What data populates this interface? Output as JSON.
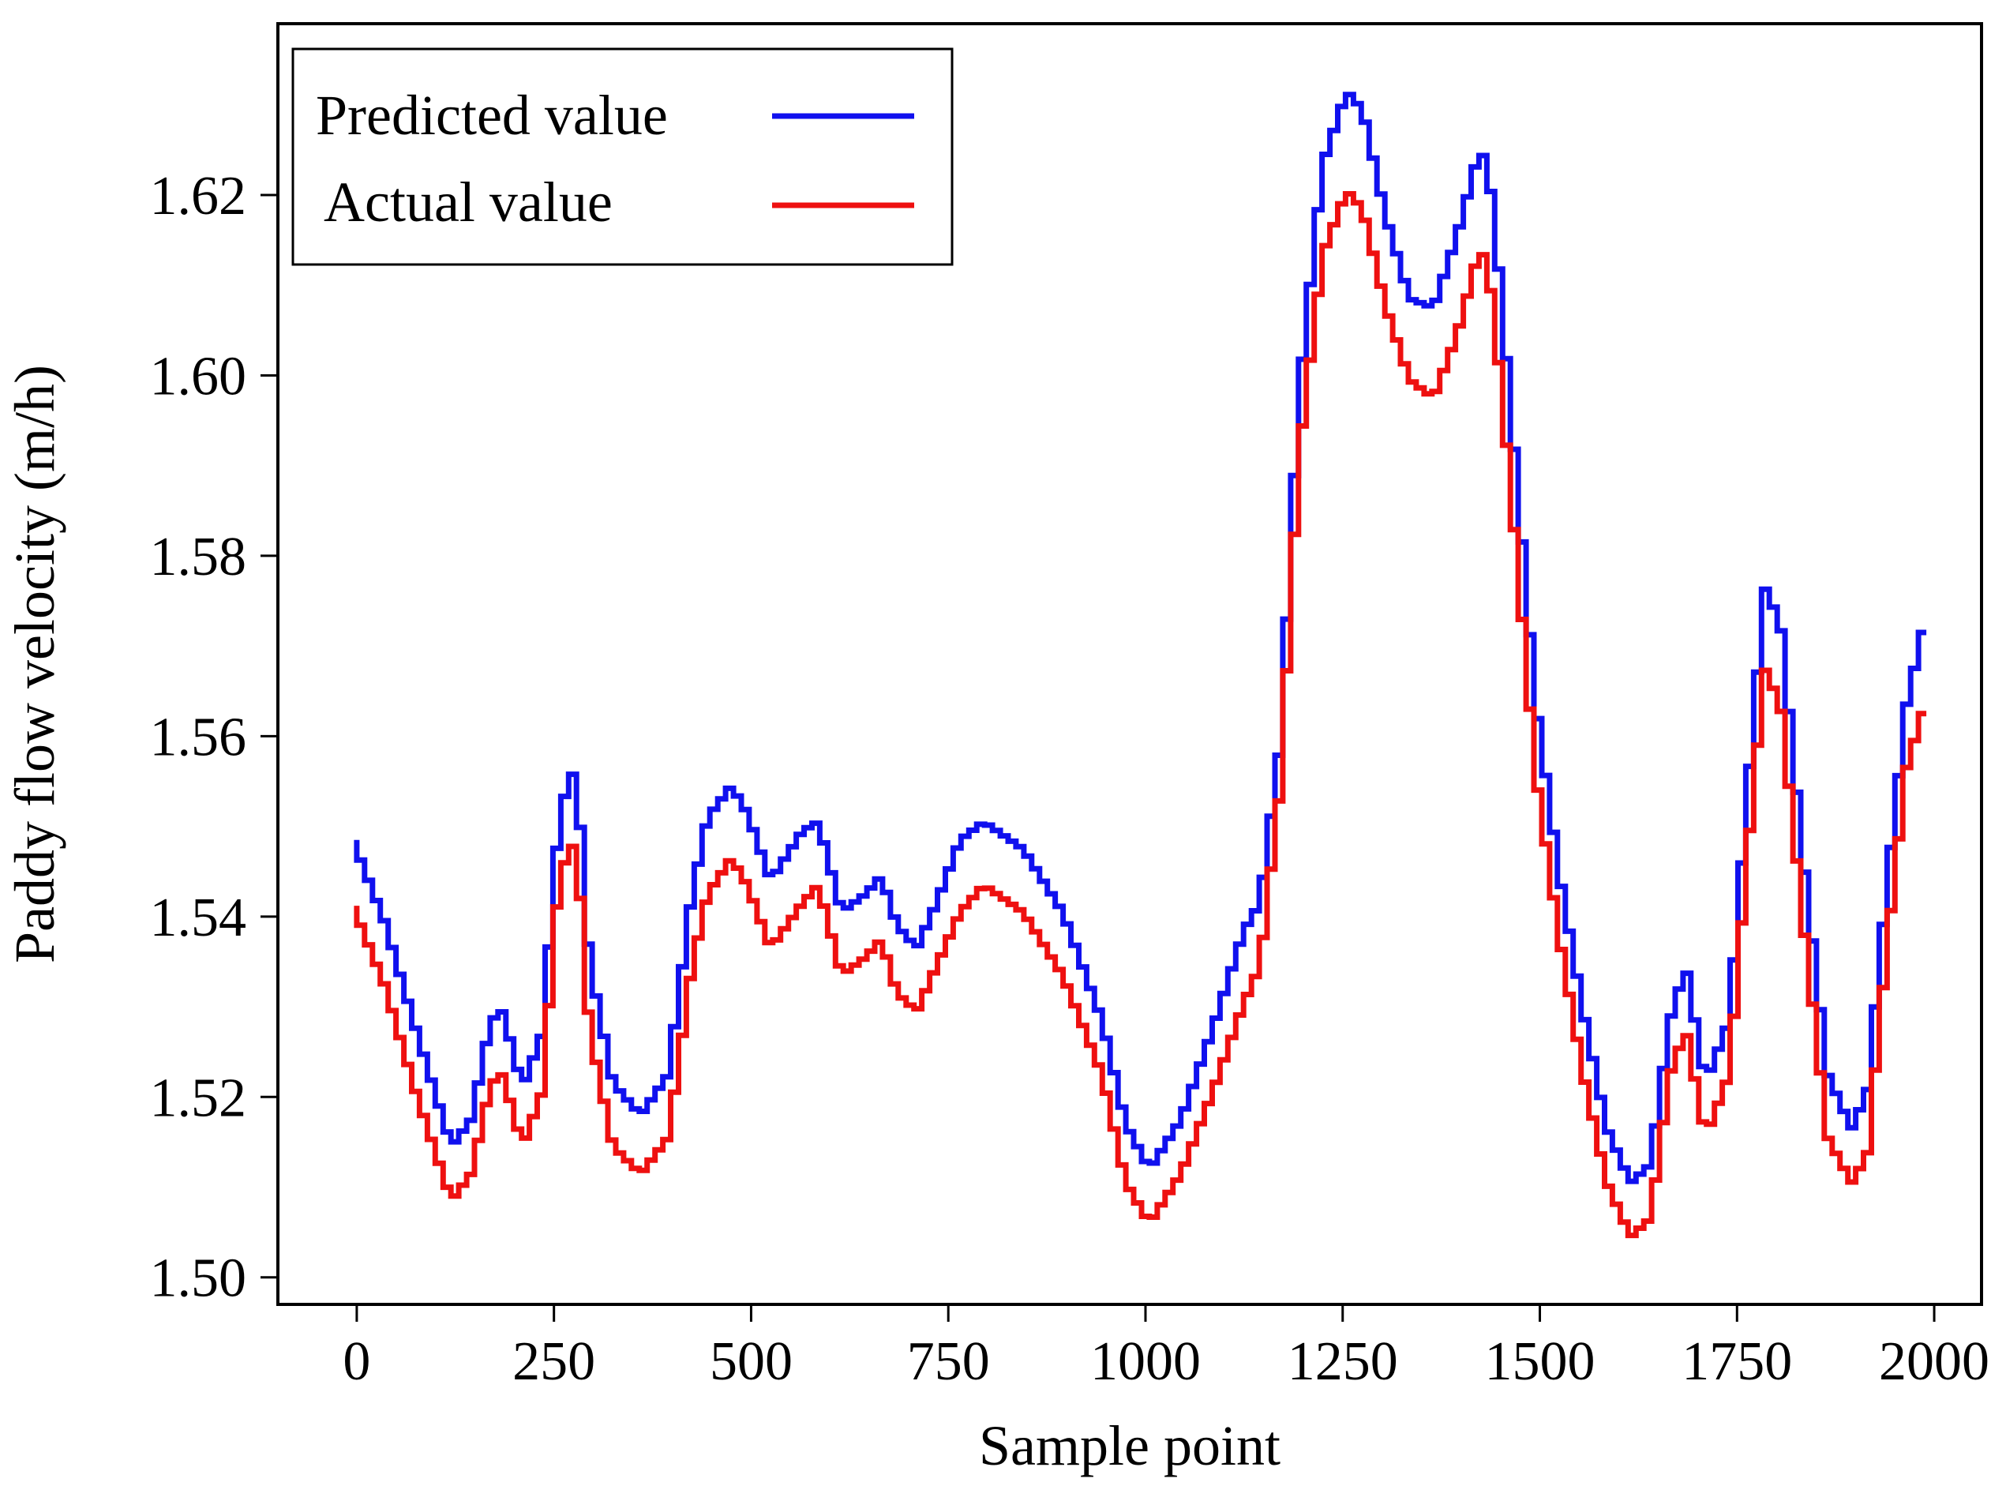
{
  "chart_data": {
    "type": "line",
    "title": "",
    "xlabel": "Sample point",
    "ylabel": "Paddy flow velocity (m/h)",
    "xlim": [
      -100,
      2060
    ],
    "ylim": [
      1.497,
      1.639
    ],
    "x_ticks": [
      0,
      250,
      500,
      750,
      1000,
      1250,
      1500,
      1750,
      2000
    ],
    "x_tick_labels": [
      "0",
      "250",
      "500",
      "750",
      "1000",
      "1250",
      "1500",
      "1750",
      "2000"
    ],
    "y_ticks": [
      1.5,
      1.52,
      1.54,
      1.56,
      1.58,
      1.6,
      1.62
    ],
    "y_tick_labels": [
      "1.50",
      "1.52",
      "1.54",
      "1.56",
      "1.58",
      "1.60",
      "1.62"
    ],
    "grid": false,
    "legend_position": "top-left",
    "series": [
      {
        "name": "Predicted value",
        "color": "#1010ee",
        "x": [
          0,
          40,
          80,
          125,
          150,
          175,
          190,
          215,
          240,
          260,
          275,
          285,
          300,
          330,
          365,
          400,
          430,
          450,
          480,
          500,
          530,
          570,
          590,
          620,
          650,
          670,
          690,
          715,
          740,
          770,
          800,
          850,
          900,
          950,
          980,
          1010,
          1050,
          1090,
          1130,
          1150,
          1175,
          1200,
          1230,
          1260,
          1280,
          1310,
          1340,
          1370,
          1400,
          1430,
          1445,
          1470,
          1500,
          1530,
          1560,
          1590,
          1620,
          1645,
          1670,
          1690,
          1715,
          1745,
          1770,
          1790,
          1810,
          1840,
          1870,
          1900,
          1920,
          1945,
          1970,
          1990
        ],
        "values": [
          1.5485,
          1.5395,
          1.5275,
          1.5145,
          1.5175,
          1.5285,
          1.5295,
          1.521,
          1.527,
          1.549,
          1.5565,
          1.5545,
          1.535,
          1.5215,
          1.518,
          1.5225,
          1.5425,
          1.551,
          1.5545,
          1.5515,
          1.544,
          1.5495,
          1.5505,
          1.5405,
          1.5425,
          1.5445,
          1.539,
          1.5365,
          1.5415,
          1.5485,
          1.5505,
          1.5475,
          1.5405,
          1.5285,
          1.517,
          1.512,
          1.5175,
          1.5275,
          1.5385,
          1.5415,
          1.5585,
          1.5985,
          1.6235,
          1.6315,
          1.6295,
          1.6175,
          1.6085,
          1.6075,
          1.6155,
          1.6255,
          1.6195,
          1.5945,
          1.5635,
          1.5445,
          1.5295,
          1.5165,
          1.5105,
          1.5125,
          1.5285,
          1.5345,
          1.5215,
          1.5285,
          1.5555,
          1.5765,
          1.5725,
          1.5455,
          1.5225,
          1.5165,
          1.5205,
          1.5435,
          1.5635,
          1.5715
        ]
      },
      {
        "name": "Actual value",
        "color": "#ee1010",
        "x": [
          0,
          40,
          80,
          125,
          150,
          175,
          190,
          215,
          240,
          260,
          275,
          285,
          300,
          330,
          365,
          400,
          430,
          450,
          480,
          500,
          530,
          570,
          590,
          620,
          650,
          670,
          690,
          715,
          740,
          770,
          800,
          850,
          900,
          950,
          980,
          1010,
          1050,
          1090,
          1130,
          1150,
          1175,
          1200,
          1230,
          1260,
          1280,
          1310,
          1340,
          1370,
          1400,
          1430,
          1445,
          1470,
          1500,
          1530,
          1560,
          1590,
          1620,
          1645,
          1670,
          1690,
          1715,
          1745,
          1770,
          1790,
          1810,
          1840,
          1870,
          1900,
          1920,
          1945,
          1970,
          1990
        ],
        "values": [
          1.5412,
          1.5325,
          1.5205,
          1.5085,
          1.5115,
          1.5215,
          1.5225,
          1.5145,
          1.5205,
          1.5425,
          1.5485,
          1.5465,
          1.5275,
          1.5145,
          1.5115,
          1.5155,
          1.5345,
          1.5425,
          1.5465,
          1.5435,
          1.5365,
          1.5415,
          1.5435,
          1.5335,
          1.5355,
          1.5375,
          1.5315,
          1.5295,
          1.5345,
          1.5405,
          1.5435,
          1.5405,
          1.5335,
          1.5225,
          1.5105,
          1.506,
          1.5115,
          1.5205,
          1.5305,
          1.5345,
          1.5535,
          1.5915,
          1.6135,
          1.6205,
          1.6185,
          1.6075,
          1.5995,
          1.5975,
          1.6045,
          1.6145,
          1.6085,
          1.5855,
          1.5555,
          1.5375,
          1.5225,
          1.5105,
          1.5045,
          1.5065,
          1.5225,
          1.5275,
          1.5155,
          1.5225,
          1.5485,
          1.5675,
          1.5635,
          1.5385,
          1.5155,
          1.5105,
          1.5135,
          1.5365,
          1.5565,
          1.5625
        ]
      }
    ]
  }
}
